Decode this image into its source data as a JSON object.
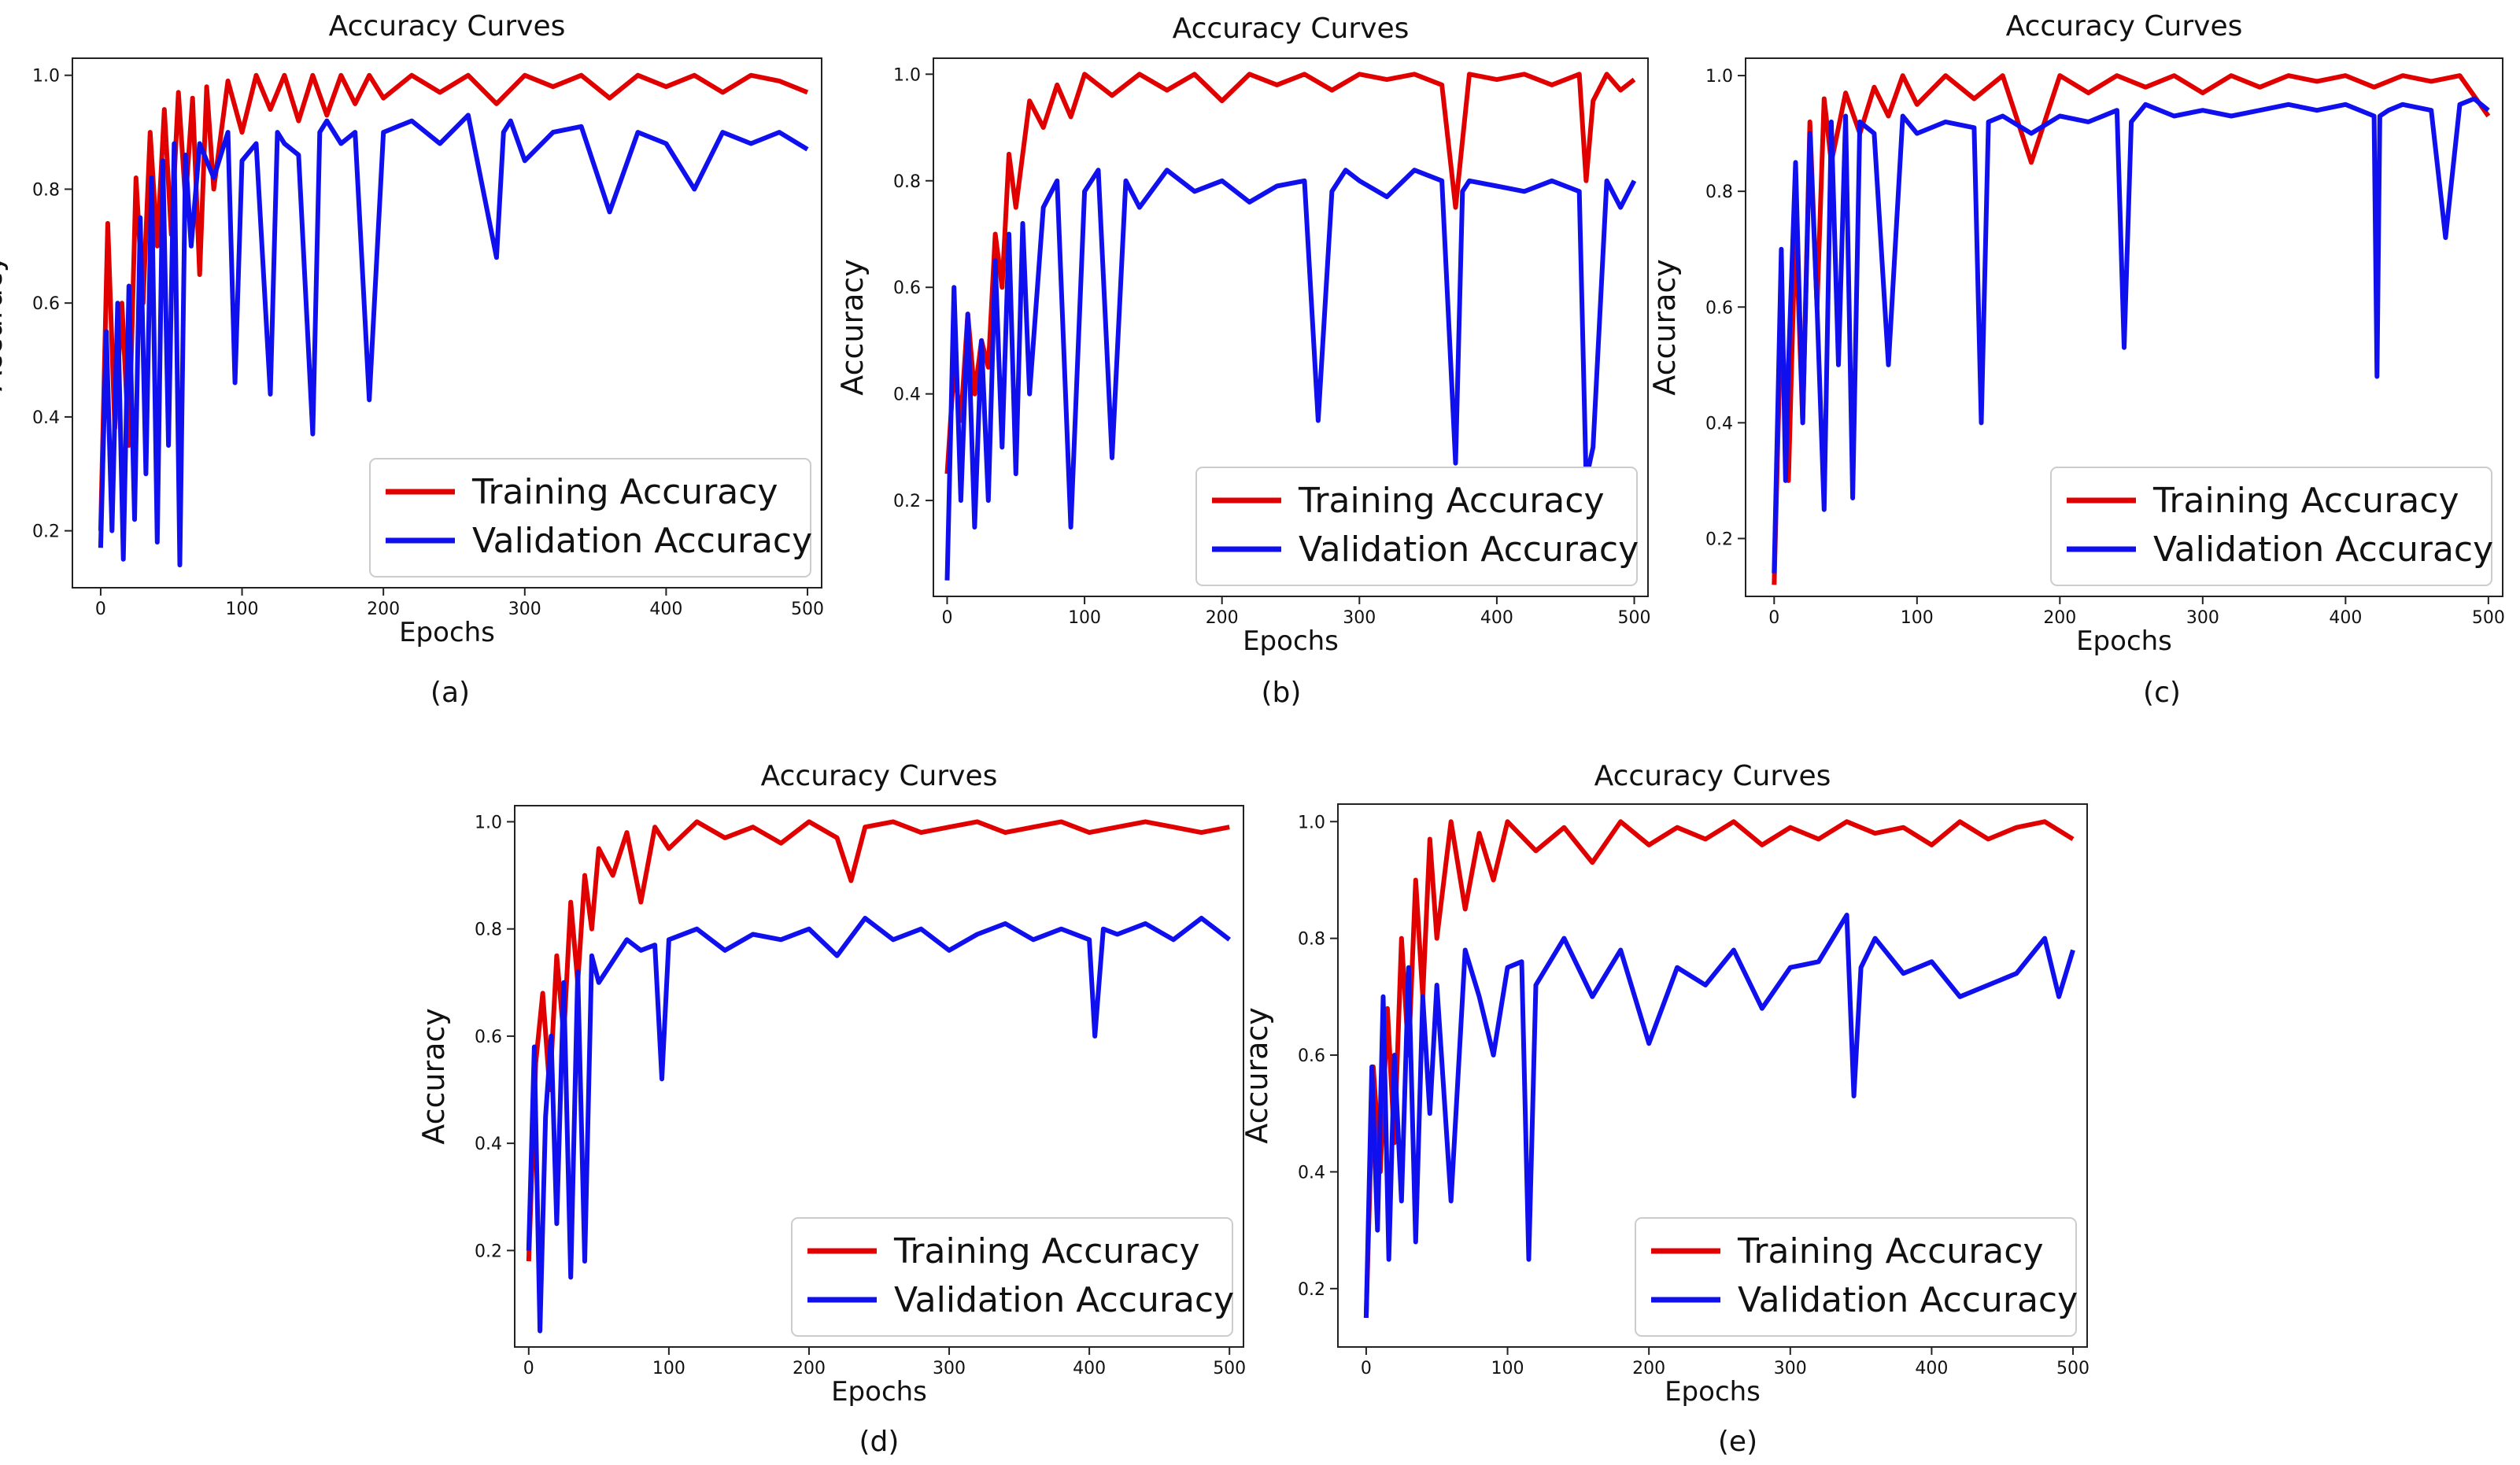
{
  "figure": {
    "panels": [
      {
        "caption": "(a)"
      },
      {
        "caption": "(b)"
      },
      {
        "caption": "(c)"
      },
      {
        "caption": "(d)"
      },
      {
        "caption": "(e)"
      }
    ]
  },
  "colors": {
    "training": "#e00000",
    "validation": "#1010ee",
    "axes": "#222222"
  },
  "chart_data": [
    {
      "type": "line",
      "title": "Accuracy Curves",
      "xlabel": "Epochs",
      "ylabel": "Accuracy",
      "xlim": [
        -20,
        510
      ],
      "ylim": [
        0.1,
        1.03
      ],
      "xticks": [
        0,
        100,
        200,
        300,
        400,
        500
      ],
      "yticks": [
        0.2,
        0.4,
        0.6,
        0.8,
        1.0
      ],
      "ytick_labels": [
        "0.2",
        "0.4",
        "0.6",
        "0.8",
        "1.0"
      ],
      "legend": "lower-right",
      "series": [
        {
          "name": "Training Accuracy",
          "x": [
            0,
            5,
            10,
            15,
            20,
            25,
            30,
            35,
            40,
            45,
            50,
            55,
            60,
            65,
            70,
            75,
            80,
            90,
            100,
            110,
            120,
            130,
            140,
            150,
            160,
            170,
            180,
            190,
            200,
            220,
            240,
            260,
            280,
            300,
            320,
            340,
            360,
            380,
            400,
            420,
            440,
            460,
            480,
            500
          ],
          "values": [
            0.2,
            0.74,
            0.38,
            0.6,
            0.35,
            0.82,
            0.6,
            0.9,
            0.7,
            0.94,
            0.72,
            0.97,
            0.78,
            0.96,
            0.65,
            0.98,
            0.8,
            0.99,
            0.9,
            1.0,
            0.94,
            1.0,
            0.92,
            1.0,
            0.93,
            1.0,
            0.95,
            1.0,
            0.96,
            1.0,
            0.97,
            1.0,
            0.95,
            1.0,
            0.98,
            1.0,
            0.96,
            1.0,
            0.98,
            1.0,
            0.97,
            1.0,
            0.99,
            0.97
          ]
        },
        {
          "name": "Validation Accuracy",
          "x": [
            0,
            4,
            8,
            12,
            16,
            20,
            24,
            28,
            32,
            36,
            40,
            44,
            48,
            52,
            56,
            60,
            64,
            70,
            80,
            90,
            95,
            100,
            110,
            120,
            125,
            130,
            140,
            150,
            155,
            160,
            170,
            180,
            190,
            200,
            220,
            240,
            260,
            280,
            285,
            290,
            300,
            320,
            340,
            360,
            380,
            400,
            420,
            440,
            460,
            480,
            500
          ],
          "values": [
            0.17,
            0.55,
            0.2,
            0.6,
            0.15,
            0.63,
            0.22,
            0.75,
            0.3,
            0.82,
            0.18,
            0.85,
            0.35,
            0.88,
            0.14,
            0.86,
            0.7,
            0.88,
            0.82,
            0.9,
            0.46,
            0.85,
            0.88,
            0.44,
            0.9,
            0.88,
            0.86,
            0.37,
            0.9,
            0.92,
            0.88,
            0.9,
            0.43,
            0.9,
            0.92,
            0.88,
            0.93,
            0.68,
            0.9,
            0.92,
            0.85,
            0.9,
            0.91,
            0.76,
            0.9,
            0.88,
            0.8,
            0.9,
            0.88,
            0.9,
            0.87
          ]
        }
      ]
    },
    {
      "type": "line",
      "title": "Accuracy Curves",
      "xlabel": "Epochs",
      "ylabel": "Accuracy",
      "xlim": [
        -10,
        510
      ],
      "ylim": [
        0.02,
        1.03
      ],
      "xticks": [
        0,
        100,
        200,
        300,
        400,
        500
      ],
      "yticks": [
        0.2,
        0.4,
        0.6,
        0.8,
        1.0
      ],
      "ytick_labels": [
        "0.2",
        "0.4",
        "0.6",
        "0.8",
        "1.0"
      ],
      "legend": "lower-right",
      "series": [
        {
          "name": "Training Accuracy",
          "x": [
            0,
            5,
            10,
            15,
            20,
            25,
            30,
            35,
            40,
            45,
            50,
            60,
            70,
            80,
            90,
            100,
            120,
            140,
            160,
            180,
            200,
            220,
            240,
            260,
            280,
            300,
            320,
            340,
            360,
            370,
            380,
            400,
            420,
            440,
            460,
            465,
            470,
            480,
            490,
            500
          ],
          "values": [
            0.25,
            0.45,
            0.35,
            0.55,
            0.4,
            0.5,
            0.45,
            0.7,
            0.6,
            0.85,
            0.75,
            0.95,
            0.9,
            0.98,
            0.92,
            1.0,
            0.96,
            1.0,
            0.97,
            1.0,
            0.95,
            1.0,
            0.98,
            1.0,
            0.97,
            1.0,
            0.99,
            1.0,
            0.98,
            0.75,
            1.0,
            0.99,
            1.0,
            0.98,
            1.0,
            0.8,
            0.95,
            1.0,
            0.97,
            0.99
          ]
        },
        {
          "name": "Validation Accuracy",
          "x": [
            0,
            5,
            10,
            15,
            20,
            25,
            30,
            35,
            40,
            45,
            50,
            55,
            60,
            70,
            80,
            90,
            100,
            110,
            120,
            130,
            140,
            160,
            180,
            200,
            220,
            240,
            260,
            270,
            280,
            290,
            300,
            320,
            340,
            360,
            370,
            375,
            380,
            400,
            420,
            440,
            460,
            465,
            470,
            480,
            490,
            500
          ],
          "values": [
            0.05,
            0.6,
            0.2,
            0.55,
            0.15,
            0.5,
            0.2,
            0.65,
            0.3,
            0.7,
            0.25,
            0.72,
            0.4,
            0.75,
            0.8,
            0.15,
            0.78,
            0.82,
            0.28,
            0.8,
            0.75,
            0.82,
            0.78,
            0.8,
            0.76,
            0.79,
            0.8,
            0.35,
            0.78,
            0.82,
            0.8,
            0.77,
            0.82,
            0.8,
            0.27,
            0.78,
            0.8,
            0.79,
            0.78,
            0.8,
            0.78,
            0.24,
            0.3,
            0.8,
            0.75,
            0.8
          ]
        }
      ]
    },
    {
      "type": "line",
      "title": "Accuracy Curves",
      "xlabel": "Epochs",
      "ylabel": "Accuracy",
      "xlim": [
        -20,
        510
      ],
      "ylim": [
        0.1,
        1.03
      ],
      "xticks": [
        0,
        100,
        200,
        300,
        400,
        500
      ],
      "yticks": [
        0.2,
        0.4,
        0.6,
        0.8,
        1.0
      ],
      "ytick_labels": [
        "0.2",
        "0.4",
        "0.6",
        "0.8",
        "1.0"
      ],
      "legend": "lower-right",
      "series": [
        {
          "name": "Training Accuracy",
          "x": [
            0,
            5,
            10,
            15,
            20,
            25,
            30,
            35,
            40,
            50,
            60,
            70,
            80,
            90,
            100,
            120,
            140,
            160,
            180,
            200,
            220,
            240,
            260,
            280,
            300,
            320,
            340,
            360,
            380,
            400,
            420,
            440,
            460,
            480,
            500
          ],
          "values": [
            0.12,
            0.6,
            0.3,
            0.75,
            0.4,
            0.92,
            0.6,
            0.96,
            0.85,
            0.97,
            0.9,
            0.98,
            0.93,
            1.0,
            0.95,
            1.0,
            0.96,
            1.0,
            0.85,
            1.0,
            0.97,
            1.0,
            0.98,
            1.0,
            0.97,
            1.0,
            0.98,
            1.0,
            0.99,
            1.0,
            0.98,
            1.0,
            0.99,
            1.0,
            0.93
          ]
        },
        {
          "name": "Validation Accuracy",
          "x": [
            0,
            5,
            8,
            10,
            15,
            20,
            25,
            30,
            35,
            40,
            45,
            50,
            55,
            60,
            70,
            80,
            90,
            100,
            120,
            140,
            145,
            150,
            160,
            180,
            200,
            220,
            240,
            245,
            250,
            260,
            280,
            300,
            320,
            340,
            360,
            380,
            400,
            420,
            422,
            424,
            430,
            440,
            460,
            470,
            480,
            490,
            500
          ],
          "values": [
            0.14,
            0.7,
            0.3,
            0.5,
            0.85,
            0.4,
            0.9,
            0.6,
            0.25,
            0.92,
            0.5,
            0.93,
            0.27,
            0.92,
            0.9,
            0.5,
            0.93,
            0.9,
            0.92,
            0.91,
            0.4,
            0.92,
            0.93,
            0.9,
            0.93,
            0.92,
            0.94,
            0.53,
            0.92,
            0.95,
            0.93,
            0.94,
            0.93,
            0.94,
            0.95,
            0.94,
            0.95,
            0.93,
            0.48,
            0.93,
            0.94,
            0.95,
            0.94,
            0.72,
            0.95,
            0.96,
            0.94
          ]
        }
      ]
    },
    {
      "type": "line",
      "title": "Accuracy Curves",
      "xlabel": "Epochs",
      "ylabel": "Accuracy",
      "xlim": [
        -10,
        510
      ],
      "ylim": [
        0.02,
        1.03
      ],
      "xticks": [
        0,
        100,
        200,
        300,
        400,
        500
      ],
      "yticks": [
        0.2,
        0.4,
        0.6,
        0.8,
        1.0
      ],
      "ytick_labels": [
        "0.2",
        "0.4",
        "0.6",
        "0.8",
        "1.0"
      ],
      "legend": "lower-right",
      "series": [
        {
          "name": "Training Accuracy",
          "x": [
            0,
            5,
            10,
            15,
            20,
            25,
            30,
            35,
            40,
            45,
            50,
            60,
            70,
            80,
            90,
            100,
            120,
            140,
            160,
            180,
            200,
            220,
            230,
            240,
            260,
            280,
            300,
            320,
            340,
            360,
            380,
            400,
            420,
            440,
            460,
            480,
            500
          ],
          "values": [
            0.18,
            0.55,
            0.68,
            0.5,
            0.75,
            0.6,
            0.85,
            0.7,
            0.9,
            0.8,
            0.95,
            0.9,
            0.98,
            0.85,
            0.99,
            0.95,
            1.0,
            0.97,
            0.99,
            0.96,
            1.0,
            0.97,
            0.89,
            0.99,
            1.0,
            0.98,
            0.99,
            1.0,
            0.98,
            0.99,
            1.0,
            0.98,
            0.99,
            1.0,
            0.99,
            0.98,
            0.99
          ]
        },
        {
          "name": "Validation Accuracy",
          "x": [
            0,
            4,
            8,
            12,
            16,
            20,
            25,
            30,
            35,
            40,
            45,
            50,
            60,
            70,
            80,
            90,
            95,
            100,
            120,
            140,
            160,
            180,
            200,
            220,
            240,
            260,
            280,
            300,
            320,
            340,
            360,
            380,
            400,
            404,
            410,
            420,
            440,
            460,
            480,
            500
          ],
          "values": [
            0.2,
            0.58,
            0.05,
            0.45,
            0.6,
            0.25,
            0.7,
            0.15,
            0.72,
            0.18,
            0.75,
            0.7,
            0.74,
            0.78,
            0.76,
            0.77,
            0.52,
            0.78,
            0.8,
            0.76,
            0.79,
            0.78,
            0.8,
            0.75,
            0.82,
            0.78,
            0.8,
            0.76,
            0.79,
            0.81,
            0.78,
            0.8,
            0.78,
            0.6,
            0.8,
            0.79,
            0.81,
            0.78,
            0.82,
            0.78
          ]
        }
      ]
    },
    {
      "type": "line",
      "title": "Accuracy Curves",
      "xlabel": "Epochs",
      "ylabel": "Accuracy",
      "xlim": [
        -20,
        510
      ],
      "ylim": [
        0.1,
        1.03
      ],
      "xticks": [
        0,
        100,
        200,
        300,
        400,
        500
      ],
      "yticks": [
        0.2,
        0.4,
        0.6,
        0.8,
        1.0
      ],
      "ytick_labels": [
        "0.2",
        "0.4",
        "0.6",
        "0.8",
        "1.0"
      ],
      "legend": "lower-right",
      "series": [
        {
          "name": "Training Accuracy",
          "x": [
            0,
            5,
            10,
            15,
            20,
            25,
            30,
            35,
            40,
            45,
            50,
            60,
            70,
            80,
            90,
            100,
            120,
            140,
            160,
            180,
            200,
            220,
            240,
            260,
            280,
            300,
            320,
            340,
            360,
            380,
            400,
            420,
            440,
            460,
            480,
            500
          ],
          "values": [
            0.15,
            0.58,
            0.4,
            0.68,
            0.45,
            0.8,
            0.6,
            0.9,
            0.7,
            0.97,
            0.8,
            1.0,
            0.85,
            0.98,
            0.9,
            1.0,
            0.95,
            0.99,
            0.93,
            1.0,
            0.96,
            0.99,
            0.97,
            1.0,
            0.96,
            0.99,
            0.97,
            1.0,
            0.98,
            0.99,
            0.96,
            1.0,
            0.97,
            0.99,
            1.0,
            0.97
          ]
        },
        {
          "name": "Validation Accuracy",
          "x": [
            0,
            4,
            8,
            12,
            16,
            20,
            25,
            30,
            35,
            40,
            45,
            50,
            60,
            70,
            80,
            90,
            100,
            110,
            115,
            120,
            140,
            160,
            180,
            200,
            220,
            240,
            260,
            280,
            300,
            320,
            340,
            345,
            350,
            360,
            380,
            400,
            420,
            440,
            460,
            480,
            490,
            500
          ],
          "values": [
            0.15,
            0.58,
            0.3,
            0.7,
            0.25,
            0.6,
            0.35,
            0.75,
            0.28,
            0.7,
            0.5,
            0.72,
            0.35,
            0.78,
            0.7,
            0.6,
            0.75,
            0.76,
            0.25,
            0.72,
            0.8,
            0.7,
            0.78,
            0.62,
            0.75,
            0.72,
            0.78,
            0.68,
            0.75,
            0.76,
            0.84,
            0.53,
            0.75,
            0.8,
            0.74,
            0.76,
            0.7,
            0.72,
            0.74,
            0.8,
            0.7,
            0.78
          ]
        }
      ]
    }
  ]
}
